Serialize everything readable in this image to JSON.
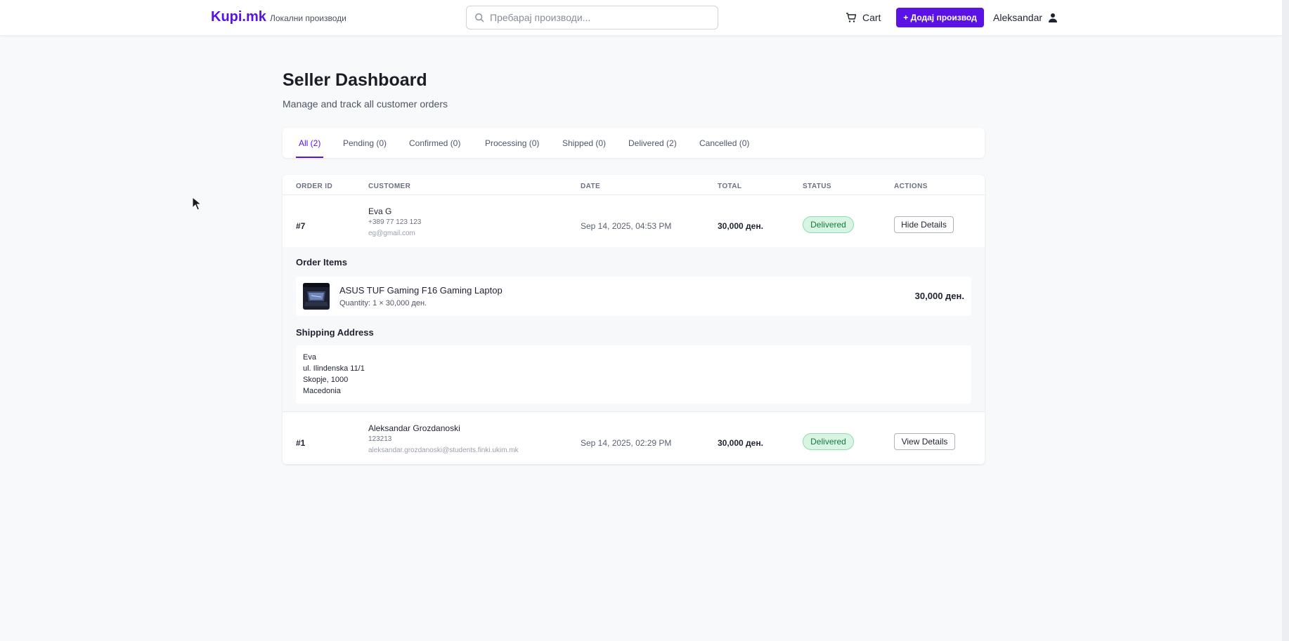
{
  "header": {
    "brand": "Kupi.mk",
    "brand_sub": "Локални производи",
    "search_placeholder": "Пребарај производи...",
    "cart_label": "Cart",
    "add_product_label": "+ Додај производ",
    "user_name": "Aleksandar"
  },
  "page": {
    "title": "Seller Dashboard",
    "subtitle": "Manage and track all customer orders"
  },
  "tabs": [
    {
      "label": "All (2)",
      "active": true
    },
    {
      "label": "Pending (0)",
      "active": false
    },
    {
      "label": "Confirmed (0)",
      "active": false
    },
    {
      "label": "Processing (0)",
      "active": false
    },
    {
      "label": "Shipped (0)",
      "active": false
    },
    {
      "label": "Delivered (2)",
      "active": false
    },
    {
      "label": "Cancelled (0)",
      "active": false
    }
  ],
  "table": {
    "columns": [
      "ORDER ID",
      "CUSTOMER",
      "DATE",
      "TOTAL",
      "STATUS",
      "ACTIONS"
    ],
    "orders": [
      {
        "id": "#7",
        "customer_name": "Eva G",
        "customer_phone": "+389 77 123 123",
        "customer_email": "eg@gmail.com",
        "date": "Sep 14, 2025, 04:53 PM",
        "total": "30,000 ден.",
        "status": "Delivered",
        "action": "Hide Details"
      },
      {
        "id": "#1",
        "customer_name": "Aleksandar Grozdanoski",
        "customer_phone": "123213",
        "customer_email": "aleksandar.grozdanoski@students.finki.ukim.mk",
        "date": "Sep 14, 2025, 02:29 PM",
        "total": "30,000 ден.",
        "status": "Delivered",
        "action": "View Details"
      }
    ]
  },
  "details": {
    "items_title": "Order Items",
    "item_name": "ASUS TUF Gaming F16 Gaming Laptop",
    "item_qty": "Quantity: 1 × 30,000 ден.",
    "item_price": "30,000 ден.",
    "shipping_title": "Shipping Address",
    "address": [
      "Eva",
      "ul. Ilindenska 11/1",
      "Skopje, 1000",
      "Macedonia"
    ]
  },
  "colors": {
    "accent": "#5b12e4",
    "status_delivered_bg": "#d8f5e3",
    "status_delivered_text": "#14793f"
  }
}
